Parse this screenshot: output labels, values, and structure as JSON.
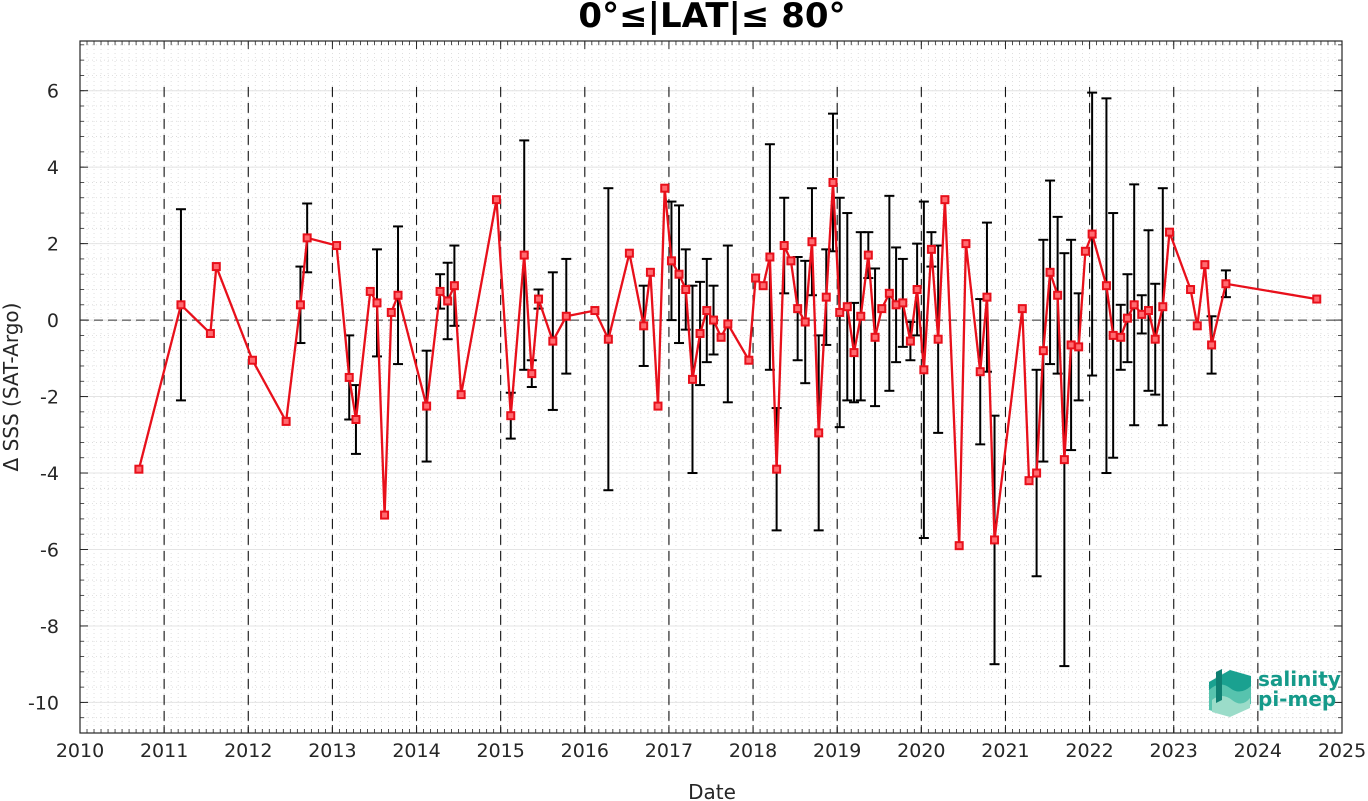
{
  "chart_data": {
    "type": "line",
    "title": "0°≤|LAT|≤ 80°",
    "xlabel": "Date",
    "ylabel": "Δ SSS (SAT-Argo)",
    "xlim": [
      2010,
      2025
    ],
    "ylim": [
      -10.8,
      7.3
    ],
    "x_ticks": [
      "2010",
      "2011",
      "2012",
      "2013",
      "2014",
      "2015",
      "2016",
      "2017",
      "2018",
      "2019",
      "2020",
      "2021",
      "2022",
      "2023",
      "2024",
      "2025"
    ],
    "y_ticks": [
      "-10",
      "-8",
      "-6",
      "-4",
      "-2",
      "0",
      "2",
      "4",
      "6"
    ],
    "grid": true,
    "year_dividers": "dashed",
    "series": [
      {
        "color": "#e8101b",
        "marker": "square",
        "points": [
          {
            "x": 2010.7,
            "y": -3.9,
            "err": null
          },
          {
            "x": 2011.2,
            "y": 0.4,
            "err": 2.5
          },
          {
            "x": 2011.55,
            "y": -0.35,
            "err": null
          },
          {
            "x": 2011.62,
            "y": 1.4,
            "err": null
          },
          {
            "x": 2012.05,
            "y": -1.05,
            "err": null
          },
          {
            "x": 2012.45,
            "y": -2.65,
            "err": null
          },
          {
            "x": 2012.62,
            "y": 0.4,
            "err": 1.0
          },
          {
            "x": 2012.7,
            "y": 2.15,
            "err": 0.9
          },
          {
            "x": 2013.05,
            "y": 1.95,
            "err": null
          },
          {
            "x": 2013.2,
            "y": -1.5,
            "err": 1.1
          },
          {
            "x": 2013.28,
            "y": -2.6,
            "err": 0.9
          },
          {
            "x": 2013.45,
            "y": 0.75,
            "err": null
          },
          {
            "x": 2013.53,
            "y": 0.45,
            "err": 1.4
          },
          {
            "x": 2013.62,
            "y": -5.1,
            "err": null
          },
          {
            "x": 2013.7,
            "y": 0.2,
            "err": null
          },
          {
            "x": 2013.78,
            "y": 0.65,
            "err": 1.8
          },
          {
            "x": 2014.12,
            "y": -2.25,
            "err": 1.45
          },
          {
            "x": 2014.28,
            "y": 0.75,
            "err": 0.45
          },
          {
            "x": 2014.37,
            "y": 0.5,
            "err": 1.0
          },
          {
            "x": 2014.45,
            "y": 0.9,
            "err": 1.05
          },
          {
            "x": 2014.53,
            "y": -1.95,
            "err": null
          },
          {
            "x": 2014.95,
            "y": 3.15,
            "err": null
          },
          {
            "x": 2015.12,
            "y": -2.5,
            "err": 0.6
          },
          {
            "x": 2015.28,
            "y": 1.7,
            "err": 3.0
          },
          {
            "x": 2015.37,
            "y": -1.4,
            "err": 0.35
          },
          {
            "x": 2015.45,
            "y": 0.55,
            "err": 0.25
          },
          {
            "x": 2015.62,
            "y": -0.55,
            "err": 1.8
          },
          {
            "x": 2015.78,
            "y": 0.1,
            "err": 1.5
          },
          {
            "x": 2016.12,
            "y": 0.25,
            "err": null
          },
          {
            "x": 2016.28,
            "y": -0.5,
            "err": 3.95
          },
          {
            "x": 2016.53,
            "y": 1.75,
            "err": null
          },
          {
            "x": 2016.7,
            "y": -0.15,
            "err": 1.05
          },
          {
            "x": 2016.78,
            "y": 1.25,
            "err": null
          },
          {
            "x": 2016.87,
            "y": -2.25,
            "err": null
          },
          {
            "x": 2016.95,
            "y": 3.45,
            "err": null
          },
          {
            "x": 2017.03,
            "y": 1.55,
            "err": 1.55
          },
          {
            "x": 2017.12,
            "y": 1.2,
            "err": 1.8
          },
          {
            "x": 2017.2,
            "y": 0.8,
            "err": 1.05
          },
          {
            "x": 2017.28,
            "y": -1.55,
            "err": 2.45
          },
          {
            "x": 2017.37,
            "y": -0.35,
            "err": 1.35
          },
          {
            "x": 2017.45,
            "y": 0.25,
            "err": 1.35
          },
          {
            "x": 2017.53,
            "y": 0.0,
            "err": 0.9
          },
          {
            "x": 2017.62,
            "y": -0.45,
            "err": null
          },
          {
            "x": 2017.7,
            "y": -0.1,
            "err": 2.05
          },
          {
            "x": 2017.95,
            "y": -1.05,
            "err": null
          },
          {
            "x": 2018.03,
            "y": 1.1,
            "err": null
          },
          {
            "x": 2018.12,
            "y": 0.9,
            "err": null
          },
          {
            "x": 2018.2,
            "y": 1.65,
            "err": 2.95
          },
          {
            "x": 2018.28,
            "y": -3.9,
            "err": 1.6
          },
          {
            "x": 2018.37,
            "y": 1.95,
            "err": 1.25
          },
          {
            "x": 2018.45,
            "y": 1.55,
            "err": null
          },
          {
            "x": 2018.53,
            "y": 0.3,
            "err": 1.35
          },
          {
            "x": 2018.62,
            "y": -0.05,
            "err": 1.6
          },
          {
            "x": 2018.7,
            "y": 2.05,
            "err": 1.4
          },
          {
            "x": 2018.78,
            "y": -2.95,
            "err": 2.55
          },
          {
            "x": 2018.87,
            "y": 0.6,
            "err": 1.25
          },
          {
            "x": 2018.95,
            "y": 3.6,
            "err": 1.8
          },
          {
            "x": 2019.03,
            "y": 0.2,
            "err": 3.0
          },
          {
            "x": 2019.12,
            "y": 0.35,
            "err": 2.45
          },
          {
            "x": 2019.2,
            "y": -0.85,
            "err": 1.3
          },
          {
            "x": 2019.28,
            "y": 0.1,
            "err": 2.2
          },
          {
            "x": 2019.37,
            "y": 1.7,
            "err": 0.6
          },
          {
            "x": 2019.45,
            "y": -0.45,
            "err": 1.8
          },
          {
            "x": 2019.53,
            "y": 0.3,
            "err": null
          },
          {
            "x": 2019.62,
            "y": 0.7,
            "err": 2.55
          },
          {
            "x": 2019.7,
            "y": 0.4,
            "err": 1.5
          },
          {
            "x": 2019.78,
            "y": 0.45,
            "err": 1.15
          },
          {
            "x": 2019.87,
            "y": -0.55,
            "err": 0.5
          },
          {
            "x": 2019.95,
            "y": 0.8,
            "err": 1.2
          },
          {
            "x": 2020.03,
            "y": -1.3,
            "err": 4.4
          },
          {
            "x": 2020.12,
            "y": 1.85,
            "err": 0.45
          },
          {
            "x": 2020.2,
            "y": -0.5,
            "err": 2.45
          },
          {
            "x": 2020.28,
            "y": 3.15,
            "err": null
          },
          {
            "x": 2020.45,
            "y": -5.9,
            "err": null
          },
          {
            "x": 2020.53,
            "y": 2.0,
            "err": null
          },
          {
            "x": 2020.7,
            "y": -1.35,
            "err": 1.9
          },
          {
            "x": 2020.78,
            "y": 0.6,
            "err": 1.95
          },
          {
            "x": 2020.87,
            "y": -5.75,
            "err": 3.25
          },
          {
            "x": 2021.2,
            "y": 0.3,
            "err": null
          },
          {
            "x": 2021.28,
            "y": -4.2,
            "err": null
          },
          {
            "x": 2021.37,
            "y": -4.0,
            "err": 2.7
          },
          {
            "x": 2021.45,
            "y": -0.8,
            "err": 2.9
          },
          {
            "x": 2021.53,
            "y": 1.25,
            "err": 2.4
          },
          {
            "x": 2021.62,
            "y": 0.65,
            "err": 2.05
          },
          {
            "x": 2021.7,
            "y": -3.65,
            "err": 5.4
          },
          {
            "x": 2021.78,
            "y": -0.65,
            "err": 2.75
          },
          {
            "x": 2021.87,
            "y": -0.7,
            "err": 1.4
          },
          {
            "x": 2021.95,
            "y": 1.8,
            "err": null
          },
          {
            "x": 2022.03,
            "y": 2.25,
            "err": 3.7
          },
          {
            "x": 2022.2,
            "y": 0.9,
            "err": 4.9
          },
          {
            "x": 2022.28,
            "y": -0.4,
            "err": 3.2
          },
          {
            "x": 2022.37,
            "y": -0.45,
            "err": 0.85
          },
          {
            "x": 2022.45,
            "y": 0.05,
            "err": 1.15
          },
          {
            "x": 2022.53,
            "y": 0.4,
            "err": 3.15
          },
          {
            "x": 2022.62,
            "y": 0.15,
            "err": 0.5
          },
          {
            "x": 2022.7,
            "y": 0.25,
            "err": 2.1
          },
          {
            "x": 2022.78,
            "y": -0.5,
            "err": 1.45
          },
          {
            "x": 2022.87,
            "y": 0.35,
            "err": 3.1
          },
          {
            "x": 2022.95,
            "y": 2.3,
            "err": null
          },
          {
            "x": 2023.2,
            "y": 0.8,
            "err": null
          },
          {
            "x": 2023.28,
            "y": -0.15,
            "err": null
          },
          {
            "x": 2023.37,
            "y": 1.45,
            "err": null
          },
          {
            "x": 2023.45,
            "y": -0.65,
            "err": 0.75
          },
          {
            "x": 2023.62,
            "y": 0.95,
            "err": 0.35
          },
          {
            "x": 2024.7,
            "y": 0.55,
            "err": null
          }
        ]
      }
    ]
  },
  "logo": {
    "line1": "salinity",
    "line2": "pi-mep",
    "color": "#159a8a"
  }
}
